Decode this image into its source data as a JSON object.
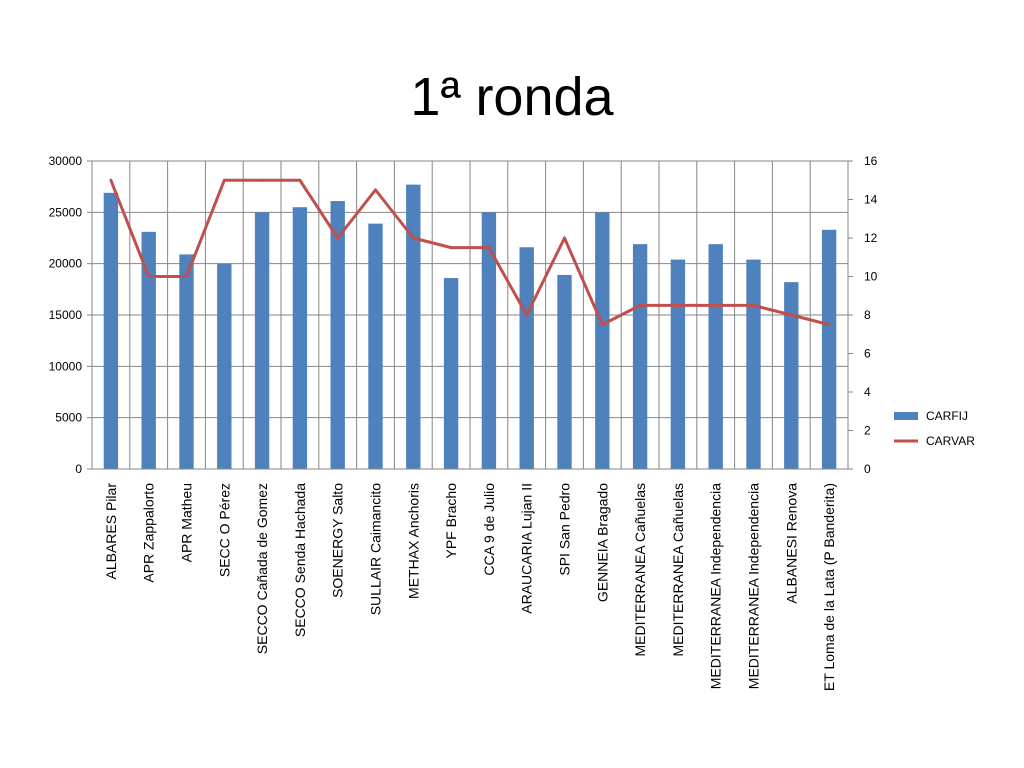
{
  "chart_data": {
    "type": "bar",
    "title": "1ª ronda",
    "categories": [
      "ALBARES Pilar",
      "APR Zappalorto",
      "APR  Matheu",
      "SECC O Pérez",
      "SECCO Cañada de Gomez",
      "SECCO  Senda Hachada",
      "SOENERGY  Salto",
      "SULLAIR  Caimancito",
      "METHAX Anchoris",
      "YPF Bracho",
      "CCA 9 de Julio",
      "ARAUCARIA Lujan II",
      "SPI  San Pedro",
      "GENNEIA  Bragado",
      "MEDITERRANEA  Cañuelas",
      "MEDITERRANEA Cañuelas",
      "MEDITERRANEA Independencia",
      "MEDITERRANEA Independencia",
      "ALBANESI  Renova",
      "ET Loma de la Lata (P Banderita)"
    ],
    "series": [
      {
        "name": "CARFIJ",
        "type": "bar",
        "axis": "left",
        "color": "#4f81bd",
        "values": [
          26900,
          23100,
          20900,
          20000,
          25000,
          25500,
          26100,
          23900,
          27700,
          18600,
          25000,
          21600,
          18900,
          25000,
          21900,
          20400,
          21900,
          20400,
          18200,
          23300
        ]
      },
      {
        "name": "CARVAR",
        "type": "line",
        "axis": "right",
        "color": "#c0504d",
        "values": [
          15,
          10,
          10,
          15,
          15,
          15,
          12,
          14.5,
          12,
          11.5,
          11.5,
          8,
          12,
          7.5,
          8.5,
          8.5,
          8.5,
          8.5,
          8,
          7.5
        ]
      }
    ],
    "y_left": {
      "min": 0,
      "max": 30000,
      "ticks": [
        "0",
        "5000",
        "10000",
        "15000",
        "20000",
        "25000",
        "30000"
      ]
    },
    "y_right": {
      "min": 0,
      "max": 16,
      "ticks": [
        "0",
        "2",
        "4",
        "6",
        "8",
        "10",
        "12",
        "14",
        "16"
      ]
    },
    "grid": true,
    "legend": "right"
  }
}
